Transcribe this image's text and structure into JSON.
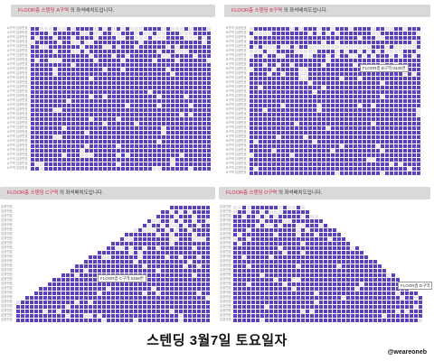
{
  "panels": [
    {
      "header_highlight": "FLOOR층 스탠딩 A구역",
      "header_rest": " 의 좌석배치도입니다.",
      "row_label": "A구역 입장번호",
      "tooltip": null
    },
    {
      "header_highlight": "FLOOR층 스탠딩 B구역",
      "header_rest": " 의 좌석배치도입니다.",
      "row_label": "B구역 입장번호",
      "tooltip": "FLOOR층 B구역 0345번"
    },
    {
      "header_highlight": "FLOOR층 스탠딩 C구역",
      "header_rest": " 의 좌석배치도입니다.",
      "row_label": "입장번호",
      "tooltip": "FLOOR층 C구역 0458번"
    },
    {
      "header_highlight": "FLOOR층 스탠딩 D구역",
      "header_rest": " 의 좌석배치도입니다.",
      "row_label": "입장번호",
      "tooltip": "FLOOR층 D구역"
    }
  ],
  "caption": "스텐딩 3월7일 토요일자",
  "handle": "@weareoneb",
  "colors": {
    "available": "#5b3fc4",
    "taken": "#e8e8e8",
    "header_bg": "#d9d9d9",
    "header_highlight": "#d2294f"
  }
}
